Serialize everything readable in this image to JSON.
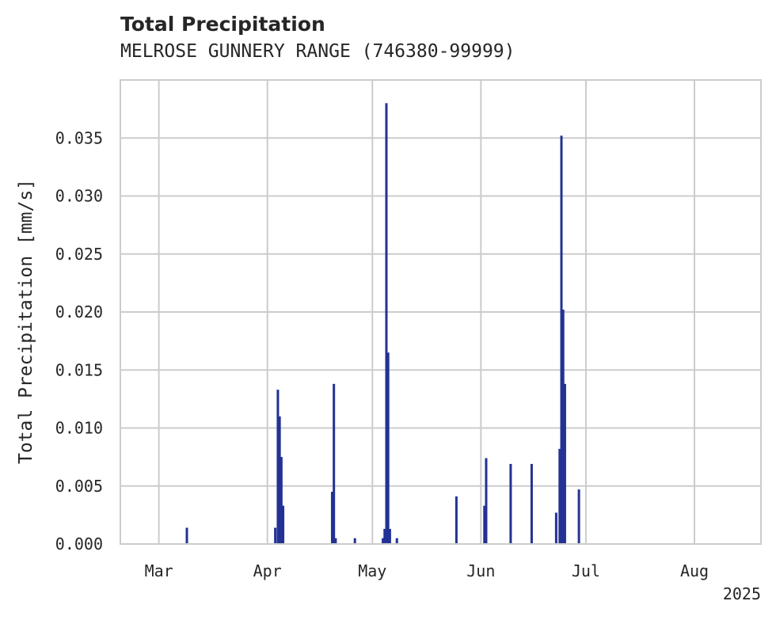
{
  "title": "Total Precipitation",
  "subtitle": "MELROSE GUNNERY RANGE (746380-99999)",
  "chart_data": {
    "type": "bar",
    "title": "Total Precipitation",
    "subtitle": "MELROSE GUNNERY RANGE (746380-99999)",
    "ylabel": "Total Precipitation [mm/s]",
    "xlabel": "",
    "x_offset_label": "2025",
    "xlim": [
      "2025-02-18",
      "2025-08-20"
    ],
    "ylim": [
      0,
      0.04
    ],
    "x_ticks": [
      {
        "date": "2025-03-01",
        "label": "Mar"
      },
      {
        "date": "2025-04-01",
        "label": "Apr"
      },
      {
        "date": "2025-05-01",
        "label": "May"
      },
      {
        "date": "2025-06-01",
        "label": "Jun"
      },
      {
        "date": "2025-07-01",
        "label": "Jul"
      },
      {
        "date": "2025-08-01",
        "label": "Aug"
      }
    ],
    "y_ticks": [
      {
        "value": 0.0,
        "label": "0.000"
      },
      {
        "value": 0.005,
        "label": "0.005"
      },
      {
        "value": 0.01,
        "label": "0.010"
      },
      {
        "value": 0.015,
        "label": "0.015"
      },
      {
        "value": 0.02,
        "label": "0.020"
      },
      {
        "value": 0.025,
        "label": "0.025"
      },
      {
        "value": 0.03,
        "label": "0.030"
      },
      {
        "value": 0.035,
        "label": "0.035"
      }
    ],
    "grid": true,
    "series": [
      {
        "color": "#233294",
        "points": [
          {
            "x": "2025-03-09T00:00",
            "y": 0.0014
          },
          {
            "x": "2025-04-03T06:00",
            "y": 0.0014
          },
          {
            "x": "2025-04-04T00:00",
            "y": 0.0133
          },
          {
            "x": "2025-04-04T12:00",
            "y": 0.011
          },
          {
            "x": "2025-04-05T00:00",
            "y": 0.0075
          },
          {
            "x": "2025-04-05T12:00",
            "y": 0.0033
          },
          {
            "x": "2025-04-19T12:00",
            "y": 0.0045
          },
          {
            "x": "2025-04-20T00:00",
            "y": 0.0138
          },
          {
            "x": "2025-04-20T12:00",
            "y": 0.0005
          },
          {
            "x": "2025-04-26T00:00",
            "y": 0.0005
          },
          {
            "x": "2025-05-04T00:00",
            "y": 0.0005
          },
          {
            "x": "2025-05-04T12:00",
            "y": 0.0013
          },
          {
            "x": "2025-05-05T00:00",
            "y": 0.038
          },
          {
            "x": "2025-05-05T12:00",
            "y": 0.0165
          },
          {
            "x": "2025-05-06T00:00",
            "y": 0.0013
          },
          {
            "x": "2025-05-08T00:00",
            "y": 0.0005
          },
          {
            "x": "2025-05-25T00:00",
            "y": 0.0041
          },
          {
            "x": "2025-06-02T00:00",
            "y": 0.0033
          },
          {
            "x": "2025-06-02T12:00",
            "y": 0.0074
          },
          {
            "x": "2025-06-09T12:00",
            "y": 0.0069
          },
          {
            "x": "2025-06-15T12:00",
            "y": 0.0069
          },
          {
            "x": "2025-06-22T12:00",
            "y": 0.0027
          },
          {
            "x": "2025-06-23T12:00",
            "y": 0.0082
          },
          {
            "x": "2025-06-24T00:00",
            "y": 0.0352
          },
          {
            "x": "2025-06-24T12:00",
            "y": 0.0202
          },
          {
            "x": "2025-06-25T00:00",
            "y": 0.0138
          },
          {
            "x": "2025-06-29T00:00",
            "y": 0.0047
          }
        ]
      }
    ]
  }
}
